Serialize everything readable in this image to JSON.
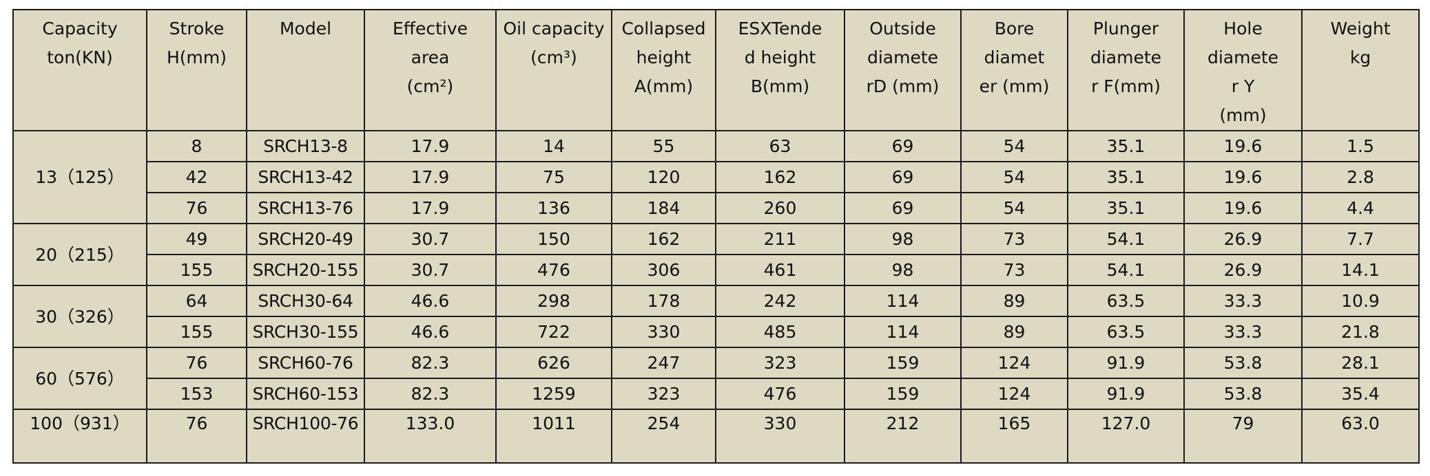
{
  "table": {
    "headers": [
      [
        "Capacity",
        "ton(KN)"
      ],
      [
        "Stroke",
        "H(mm)"
      ],
      [
        "Model"
      ],
      [
        "Effective",
        "area",
        "(cm²)"
      ],
      [
        "Oil capacity",
        "(cm³)"
      ],
      [
        "Collapsed",
        "height",
        "A(mm)"
      ],
      [
        "ESXTende",
        "d height",
        "B(mm)"
      ],
      [
        "Outside",
        "diamete",
        "rD (mm)"
      ],
      [
        "Bore",
        "diamet",
        "er (mm)"
      ],
      [
        "Plunger",
        "diamete",
        "r F(mm)"
      ],
      [
        "Hole",
        "diamete",
        "r  Y",
        "(mm)"
      ],
      [
        "Weight",
        "kg"
      ]
    ],
    "groups": [
      {
        "capacity": "13（125）",
        "rows": [
          [
            "8",
            "SRCH13-8",
            "17.9",
            "14",
            "55",
            "63",
            "69",
            "54",
            "35.1",
            "19.6",
            "1.5"
          ],
          [
            "42",
            "SRCH13-42",
            "17.9",
            "75",
            "120",
            "162",
            "69",
            "54",
            "35.1",
            "19.6",
            "2.8"
          ],
          [
            "76",
            "SRCH13-76",
            "17.9",
            "136",
            "184",
            "260",
            "69",
            "54",
            "35.1",
            "19.6",
            "4.4"
          ]
        ]
      },
      {
        "capacity": "20（215）",
        "rows": [
          [
            "49",
            "SRCH20-49",
            "30.7",
            "150",
            "162",
            "211",
            "98",
            "73",
            "54.1",
            "26.9",
            "7.7"
          ],
          [
            "155",
            "SRCH20-155",
            "30.7",
            "476",
            "306",
            "461",
            "98",
            "73",
            "54.1",
            "26.9",
            "14.1"
          ]
        ]
      },
      {
        "capacity": "30（326）",
        "rows": [
          [
            "64",
            "SRCH30-64",
            "46.6",
            "298",
            "178",
            "242",
            "114",
            "89",
            "63.5",
            "33.3",
            "10.9"
          ],
          [
            "155",
            "SRCH30-155",
            "46.6",
            "722",
            "330",
            "485",
            "114",
            "89",
            "63.5",
            "33.3",
            "21.8"
          ]
        ]
      },
      {
        "capacity": "60（576）",
        "rows": [
          [
            "76",
            "SRCH60-76",
            "82.3",
            "626",
            "247",
            "323",
            "159",
            "124",
            "91.9",
            "53.8",
            "28.1"
          ],
          [
            "153",
            "SRCH60-153",
            "82.3",
            "1259",
            "323",
            "476",
            "159",
            "124",
            "91.9",
            "53.8",
            "35.4"
          ]
        ]
      },
      {
        "capacity": "100（931）",
        "rows": [
          [
            "76",
            "SRCH100-76",
            "133.0",
            "1011",
            "254",
            "330",
            "212",
            "165",
            "127.0",
            "79",
            "63.0"
          ]
        ]
      }
    ]
  }
}
